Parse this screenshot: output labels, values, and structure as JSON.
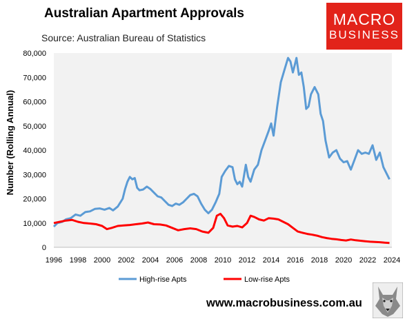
{
  "chart_data": {
    "type": "line",
    "title": "Australian Apartment Approvals",
    "subtitle": "Source: Australian Bureau of Statistics",
    "xlabel": "",
    "ylabel": "Number (Rolling Annual)",
    "xlim": [
      1996,
      2024
    ],
    "ylim": [
      0,
      80000
    ],
    "x_ticks": [
      "1996",
      "1998",
      "2000",
      "2002",
      "2004",
      "2006",
      "2008",
      "2010",
      "2012",
      "2014",
      "2016",
      "2018",
      "2020",
      "2022",
      "2024"
    ],
    "y_ticks": [
      "0",
      "10,000",
      "20,000",
      "30,000",
      "40,000",
      "50,000",
      "60,000",
      "70,000",
      "80,000"
    ],
    "grid": false,
    "legend_position": "bottom",
    "series": [
      {
        "name": "High-rise Apts",
        "color": "#5b9bd5",
        "points": [
          [
            1996.0,
            8500
          ],
          [
            1996.3,
            10000
          ],
          [
            1996.7,
            10500
          ],
          [
            1997.0,
            11500
          ],
          [
            1997.4,
            12000
          ],
          [
            1997.8,
            13500
          ],
          [
            1998.2,
            13000
          ],
          [
            1998.6,
            14500
          ],
          [
            1999.0,
            14800
          ],
          [
            1999.4,
            15800
          ],
          [
            1999.8,
            16000
          ],
          [
            2000.2,
            15500
          ],
          [
            2000.6,
            16200
          ],
          [
            2000.9,
            15200
          ],
          [
            2001.3,
            16800
          ],
          [
            2001.7,
            20000
          ],
          [
            2001.9,
            24000
          ],
          [
            2002.1,
            27000
          ],
          [
            2002.3,
            29000
          ],
          [
            2002.5,
            28000
          ],
          [
            2002.7,
            28500
          ],
          [
            2002.9,
            24500
          ],
          [
            2003.1,
            23500
          ],
          [
            2003.4,
            23800
          ],
          [
            2003.7,
            25000
          ],
          [
            2004.0,
            24000
          ],
          [
            2004.3,
            22500
          ],
          [
            2004.6,
            21000
          ],
          [
            2004.9,
            20500
          ],
          [
            2005.2,
            19000
          ],
          [
            2005.5,
            17500
          ],
          [
            2005.8,
            17000
          ],
          [
            2006.1,
            18000
          ],
          [
            2006.4,
            17500
          ],
          [
            2006.7,
            18500
          ],
          [
            2007.0,
            20000
          ],
          [
            2007.3,
            21500
          ],
          [
            2007.6,
            22000
          ],
          [
            2007.9,
            21000
          ],
          [
            2008.2,
            18000
          ],
          [
            2008.5,
            15500
          ],
          [
            2008.8,
            14000
          ],
          [
            2009.1,
            15500
          ],
          [
            2009.4,
            18500
          ],
          [
            2009.7,
            22000
          ],
          [
            2009.9,
            29000
          ],
          [
            2010.2,
            31500
          ],
          [
            2010.5,
            33500
          ],
          [
            2010.8,
            33000
          ],
          [
            2011.0,
            28000
          ],
          [
            2011.2,
            26000
          ],
          [
            2011.4,
            27000
          ],
          [
            2011.6,
            25000
          ],
          [
            2011.9,
            34000
          ],
          [
            2012.1,
            29000
          ],
          [
            2012.3,
            27000
          ],
          [
            2012.6,
            32000
          ],
          [
            2012.9,
            34000
          ],
          [
            2013.2,
            40000
          ],
          [
            2013.5,
            44000
          ],
          [
            2013.8,
            48000
          ],
          [
            2014.0,
            51000
          ],
          [
            2014.2,
            46000
          ],
          [
            2014.5,
            58000
          ],
          [
            2014.8,
            68000
          ],
          [
            2015.1,
            73000
          ],
          [
            2015.4,
            78000
          ],
          [
            2015.6,
            76500
          ],
          [
            2015.8,
            72000
          ],
          [
            2016.0,
            76000
          ],
          [
            2016.1,
            78000
          ],
          [
            2016.3,
            71000
          ],
          [
            2016.5,
            72000
          ],
          [
            2016.7,
            66000
          ],
          [
            2016.9,
            57000
          ],
          [
            2017.1,
            58000
          ],
          [
            2017.3,
            63000
          ],
          [
            2017.6,
            66000
          ],
          [
            2017.9,
            63000
          ],
          [
            2018.1,
            55000
          ],
          [
            2018.3,
            52000
          ],
          [
            2018.5,
            44000
          ],
          [
            2018.8,
            37000
          ],
          [
            2019.1,
            39000
          ],
          [
            2019.4,
            40000
          ],
          [
            2019.7,
            36500
          ],
          [
            2020.0,
            35000
          ],
          [
            2020.3,
            35500
          ],
          [
            2020.6,
            32000
          ],
          [
            2020.9,
            36000
          ],
          [
            2021.2,
            40000
          ],
          [
            2021.5,
            38500
          ],
          [
            2021.8,
            39000
          ],
          [
            2022.1,
            38500
          ],
          [
            2022.4,
            42000
          ],
          [
            2022.7,
            36000
          ],
          [
            2023.0,
            39000
          ],
          [
            2023.3,
            33000
          ],
          [
            2023.6,
            30000
          ],
          [
            2023.8,
            28000
          ]
        ]
      },
      {
        "name": "Low-rise Apts",
        "color": "#ff0000",
        "points": [
          [
            1996.0,
            10000
          ],
          [
            1996.5,
            10500
          ],
          [
            1997.0,
            11000
          ],
          [
            1997.5,
            11300
          ],
          [
            1998.0,
            10500
          ],
          [
            1998.5,
            10000
          ],
          [
            1999.0,
            9800
          ],
          [
            1999.5,
            9500
          ],
          [
            2000.0,
            8800
          ],
          [
            2000.4,
            7500
          ],
          [
            2000.8,
            8000
          ],
          [
            2001.3,
            8800
          ],
          [
            2001.8,
            9000
          ],
          [
            2002.3,
            9200
          ],
          [
            2002.8,
            9500
          ],
          [
            2003.3,
            9800
          ],
          [
            2003.8,
            10200
          ],
          [
            2004.3,
            9500
          ],
          [
            2004.8,
            9400
          ],
          [
            2005.3,
            9000
          ],
          [
            2005.8,
            8000
          ],
          [
            2006.3,
            7000
          ],
          [
            2006.8,
            7500
          ],
          [
            2007.3,
            7800
          ],
          [
            2007.8,
            7500
          ],
          [
            2008.3,
            6500
          ],
          [
            2008.8,
            6000
          ],
          [
            2009.2,
            8000
          ],
          [
            2009.5,
            13000
          ],
          [
            2009.8,
            13800
          ],
          [
            2010.1,
            12000
          ],
          [
            2010.4,
            9000
          ],
          [
            2010.8,
            8500
          ],
          [
            2011.2,
            8800
          ],
          [
            2011.6,
            8200
          ],
          [
            2012.0,
            10000
          ],
          [
            2012.3,
            13000
          ],
          [
            2012.6,
            12500
          ],
          [
            2013.0,
            11500
          ],
          [
            2013.4,
            11000
          ],
          [
            2013.8,
            12000
          ],
          [
            2014.2,
            11800
          ],
          [
            2014.6,
            11500
          ],
          [
            2015.0,
            10500
          ],
          [
            2015.4,
            9500
          ],
          [
            2015.8,
            8000
          ],
          [
            2016.2,
            6500
          ],
          [
            2016.6,
            6000
          ],
          [
            2017.0,
            5500
          ],
          [
            2017.4,
            5200
          ],
          [
            2017.8,
            4800
          ],
          [
            2018.2,
            4200
          ],
          [
            2018.6,
            3800
          ],
          [
            2019.0,
            3500
          ],
          [
            2019.4,
            3300
          ],
          [
            2019.8,
            3000
          ],
          [
            2020.2,
            2800
          ],
          [
            2020.6,
            3200
          ],
          [
            2021.0,
            2900
          ],
          [
            2021.4,
            2700
          ],
          [
            2021.8,
            2500
          ],
          [
            2022.2,
            2300
          ],
          [
            2022.6,
            2200
          ],
          [
            2023.0,
            2100
          ],
          [
            2023.4,
            1900
          ],
          [
            2023.8,
            1800
          ]
        ]
      }
    ]
  },
  "footer": {
    "website": "www.macrobusiness.com.au"
  },
  "logo": {
    "line1": "MACRO",
    "line2": "BUSINESS",
    "color": "#e2231a"
  },
  "icons": {
    "mascot": "wolf-head-icon"
  }
}
